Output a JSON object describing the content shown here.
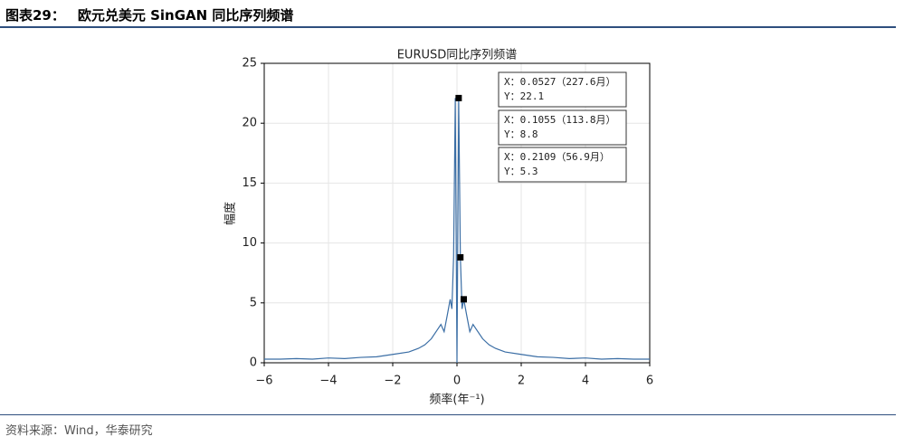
{
  "header": {
    "figure_label": "图表29：",
    "title": "欧元兑美元 SinGAN 同比序列频谱"
  },
  "chart_data": {
    "type": "line",
    "title": "EURUSD同比序列频谱",
    "xlabel": "频率(年⁻¹)",
    "ylabel": "幅度",
    "x": [
      -6,
      -5.5,
      -5,
      -4.5,
      -4,
      -3.5,
      -3,
      -2.5,
      -2,
      -1.5,
      -1.2,
      -1.0,
      -0.8,
      -0.6,
      -0.5,
      -0.4,
      -0.3,
      -0.2109,
      -0.1581,
      -0.1055,
      -0.0527,
      0,
      0.0527,
      0.1055,
      0.1581,
      0.2109,
      0.3,
      0.4,
      0.5,
      0.6,
      0.8,
      1.0,
      1.2,
      1.5,
      2,
      2.5,
      3,
      3.5,
      4,
      4.5,
      5,
      5.5,
      6
    ],
    "values": [
      0.3,
      0.3,
      0.35,
      0.3,
      0.4,
      0.35,
      0.45,
      0.5,
      0.7,
      0.9,
      1.2,
      1.5,
      2.0,
      2.8,
      3.2,
      2.6,
      4.0,
      5.3,
      4.5,
      8.8,
      22.1,
      0,
      22.1,
      8.8,
      4.5,
      5.3,
      4.0,
      2.6,
      3.2,
      2.8,
      2.0,
      1.5,
      1.2,
      0.9,
      0.7,
      0.5,
      0.45,
      0.35,
      0.4,
      0.3,
      0.35,
      0.3,
      0.3
    ],
    "color": "#3b6ea5",
    "xlim": [
      -6,
      6
    ],
    "ylim": [
      0,
      25
    ],
    "xticks": [
      {
        "value": -6,
        "label": "−6"
      },
      {
        "value": -4,
        "label": "−4"
      },
      {
        "value": -2,
        "label": "−2"
      },
      0,
      2,
      4,
      6
    ],
    "yticks": [
      0,
      5,
      10,
      15,
      20,
      25
    ],
    "grid": true,
    "annotations": [
      {
        "x": 0.0527,
        "y": 22.1,
        "x_label": "X：0.0527（227.6月）",
        "y_label": "Y：22.1"
      },
      {
        "x": 0.1055,
        "y": 8.8,
        "x_label": "X：0.1055（113.8月）",
        "y_label": "Y：8.8"
      },
      {
        "x": 0.2109,
        "y": 5.3,
        "x_label": "X：0.2109（56.9月）",
        "y_label": "Y：5.3"
      }
    ]
  },
  "source": "资料来源：Wind，华泰研究"
}
